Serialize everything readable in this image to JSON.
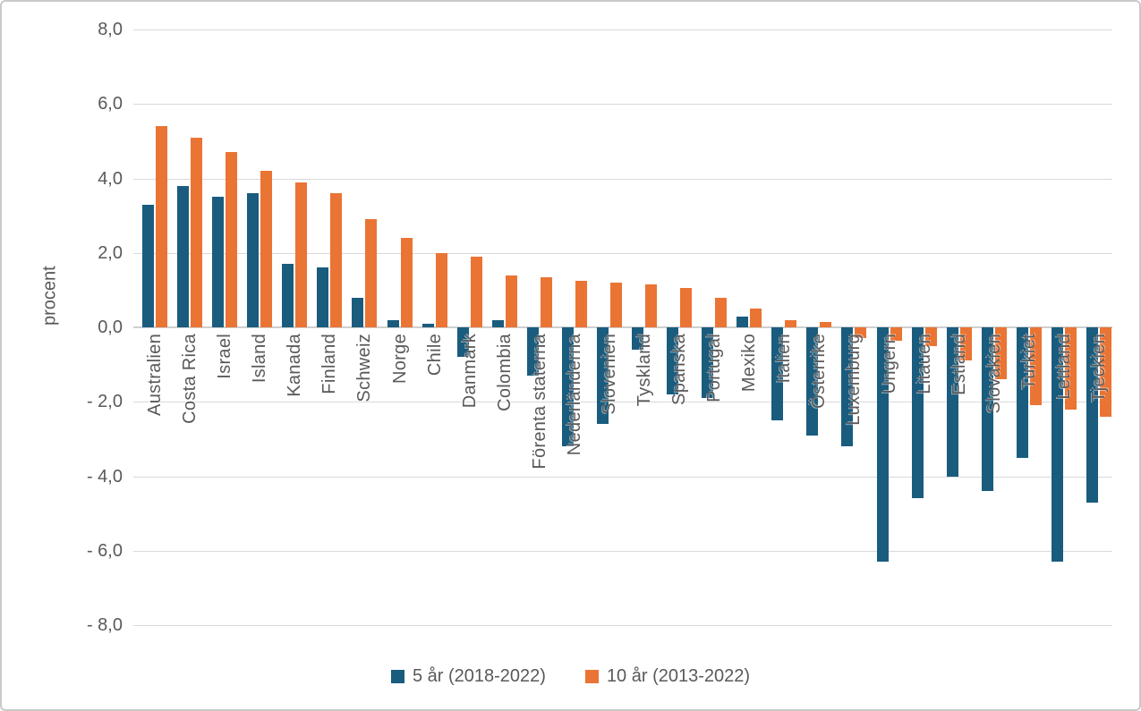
{
  "chart_data": {
    "type": "bar",
    "title": "",
    "ylabel": "procent",
    "ylim": [
      -8,
      8
    ],
    "grid": true,
    "legend_position": "bottom",
    "yticks": [
      {
        "v": 8,
        "label": "8,0"
      },
      {
        "v": 6,
        "label": "6,0"
      },
      {
        "v": 4,
        "label": "4,0"
      },
      {
        "v": 2,
        "label": "2,0"
      },
      {
        "v": 0,
        "label": "0,0"
      },
      {
        "v": -2,
        "label": "- 2,0"
      },
      {
        "v": -4,
        "label": "- 4,0"
      },
      {
        "v": -6,
        "label": "- 6,0"
      },
      {
        "v": -8,
        "label": "- 8,0"
      }
    ],
    "categories": [
      "Australien",
      "Costa Rica",
      "Israel",
      "Island",
      "Kanada",
      "Finland",
      "Schweiz",
      "Norge",
      "Chile",
      "Danmark",
      "Colombia",
      "Förenta staterna",
      "Nederländerna",
      "Slovenien",
      "Tyskland",
      "Spanska",
      "Portugal",
      "Mexiko",
      "Italien",
      "Österrike",
      "Luxemburg",
      "Ungern",
      "Litauen",
      "Estland",
      "Slovakien",
      "Turkiet",
      "Lettland",
      "Tjeckien"
    ],
    "series": [
      {
        "name": "5 år (2018-2022)",
        "key": "5ar",
        "color": "#1A5C7E",
        "values": [
          3.3,
          3.8,
          3.5,
          3.6,
          1.7,
          1.6,
          0.8,
          0.2,
          0.1,
          -0.8,
          0.2,
          -1.3,
          -3.2,
          -2.6,
          -0.6,
          -1.8,
          -1.9,
          0.3,
          -2.5,
          -2.9,
          -3.2,
          -6.3,
          -4.6,
          -4.0,
          -4.4,
          -3.5,
          -6.3,
          -4.7
        ]
      },
      {
        "name": "10 år (2013-2022)",
        "key": "10ar",
        "color": "#EA7434",
        "values": [
          5.4,
          5.1,
          4.7,
          4.2,
          3.9,
          3.6,
          2.9,
          2.4,
          2.0,
          1.9,
          1.4,
          1.35,
          1.25,
          1.2,
          1.15,
          1.05,
          0.8,
          0.5,
          0.2,
          0.15,
          -0.3,
          -0.35,
          -0.5,
          -0.9,
          -1.4,
          -2.1,
          -2.2,
          -2.4
        ]
      }
    ]
  },
  "colors": {
    "grid": "#D9D9D9",
    "zero_line": "#CFCFCF",
    "text": "#595959",
    "border": "#C9C9C9",
    "series_blue": "#1A5C7E",
    "series_orange": "#EA7434"
  }
}
